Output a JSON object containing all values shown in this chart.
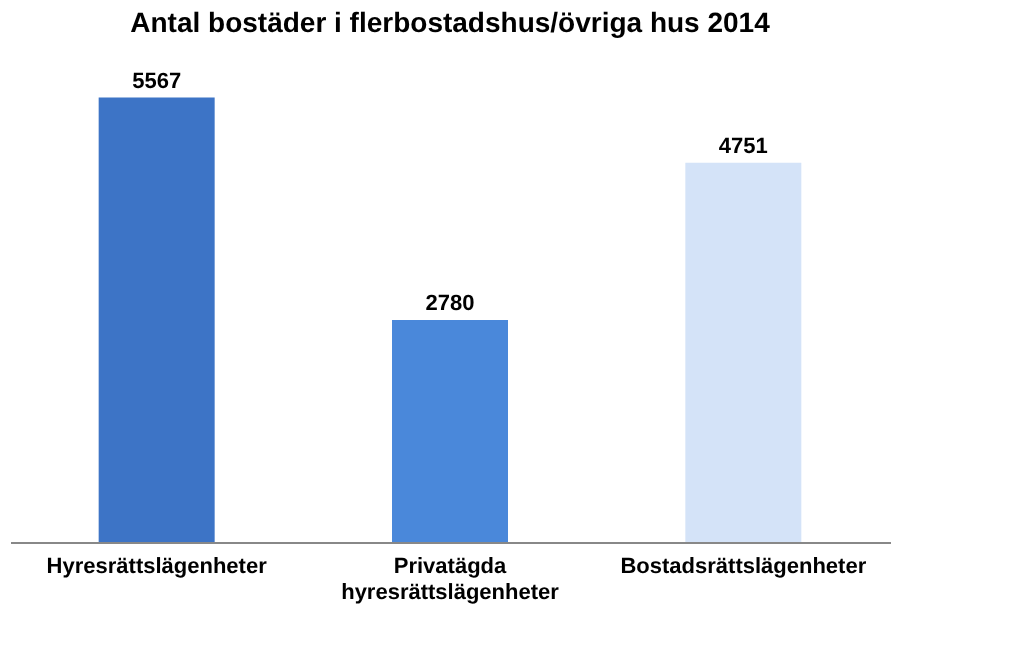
{
  "chart_data": {
    "type": "bar",
    "title": "Antal bostäder i flerbostadshus/övriga hus 2014",
    "categories": [
      "Hyresrättslägenheter",
      "Privatägda hyresrättslägenheter",
      "Bostadsrättslägenheter"
    ],
    "values": [
      5567,
      2780,
      4751
    ],
    "colors": [
      "#3d74c6",
      "#4a88da",
      "#d4e3f8"
    ],
    "data_labels": true,
    "grid": false
  }
}
